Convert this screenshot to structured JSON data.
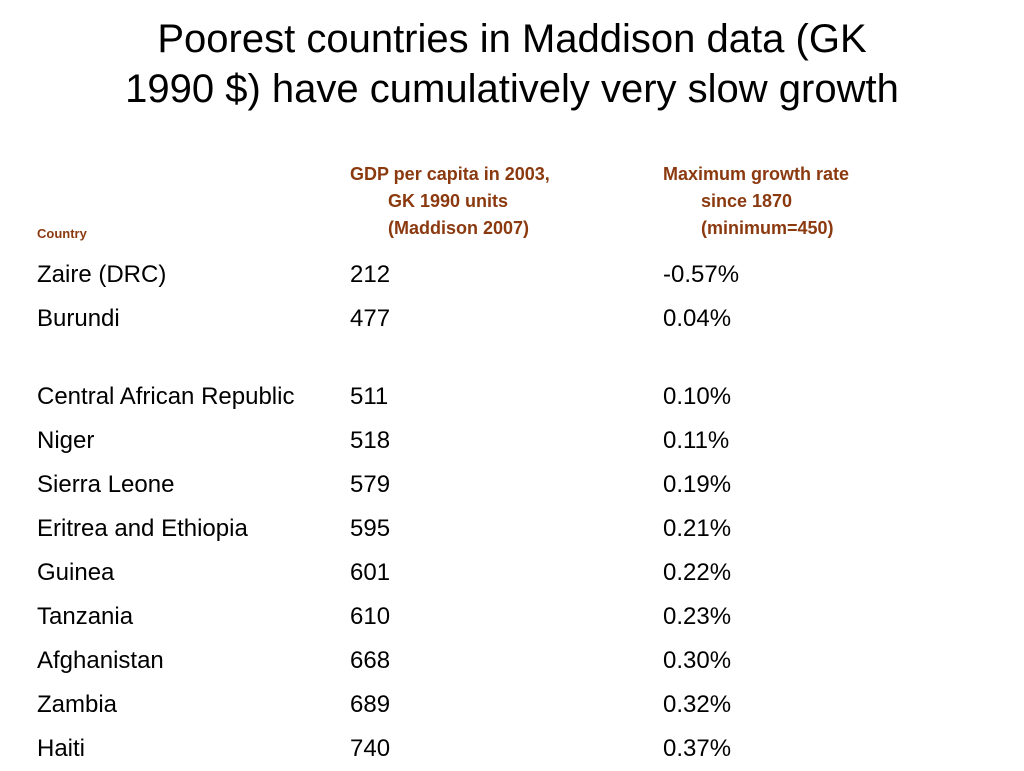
{
  "title": {
    "line1": "Poorest countries in Maddison data (GK",
    "line2": "1990 $) have cumulatively very slow growth"
  },
  "table": {
    "headers": {
      "country": "Country",
      "gdp": [
        "GDP per capita in 2003,",
        "GK 1990 units",
        "(Maddison 2007)"
      ],
      "growth": [
        "Maximum growth rate",
        "since 1870",
        "(minimum=450)"
      ]
    },
    "rows": [
      {
        "country": "Zaire (DRC)",
        "gdp": "212",
        "growth": "-0.57%"
      },
      {
        "country": "Burundi",
        "gdp": "477",
        "growth": "0.04%"
      },
      {
        "country": "Central African Republic",
        "gdp": "511",
        "growth": "0.10%"
      },
      {
        "country": "Niger",
        "gdp": "518",
        "growth": "0.11%"
      },
      {
        "country": "Sierra Leone",
        "gdp": "579",
        "growth": "0.19%"
      },
      {
        "country": "Eritrea and Ethiopia",
        "gdp": "595",
        "growth": "0.21%"
      },
      {
        "country": "Guinea",
        "gdp": "601",
        "growth": "0.22%"
      },
      {
        "country": "Tanzania",
        "gdp": "610",
        "growth": "0.23%"
      },
      {
        "country": "Afghanistan",
        "gdp": "668",
        "growth": "0.30%"
      },
      {
        "country": "Zambia",
        "gdp": "689",
        "growth": "0.32%"
      },
      {
        "country": "Haiti",
        "gdp": "740",
        "growth": "0.37%"
      }
    ]
  },
  "colors": {
    "header_text": "#8b3a10",
    "body_text": "#000000",
    "background": "#ffffff"
  }
}
